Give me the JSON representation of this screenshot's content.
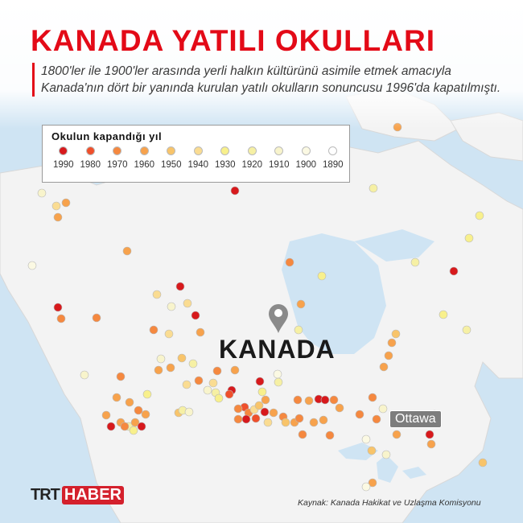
{
  "header": {
    "title": "KANADA YATILI OKULLARI",
    "subtitle": "1800'ler ile 1900'ler arasında yerli halkın kültürünü asimile etmek amacıyla Kanada'nın dört bir yanında kurulan yatılı okulların sonuncusu 1996'da kapatılmıştı."
  },
  "legend": {
    "title": "Okulun kapandığı yıl",
    "items": [
      {
        "label": "1990",
        "color": "#d7191c"
      },
      {
        "label": "1980",
        "color": "#ef4f2b"
      },
      {
        "label": "1970",
        "color": "#f5883f"
      },
      {
        "label": "1960",
        "color": "#f7a24c"
      },
      {
        "label": "1950",
        "color": "#f8c46a"
      },
      {
        "label": "1940",
        "color": "#fadc92"
      },
      {
        "label": "1930",
        "color": "#f8f08c"
      },
      {
        "label": "1920",
        "color": "#f6f0a4"
      },
      {
        "label": "1910",
        "color": "#f8f4cc"
      },
      {
        "label": "1900",
        "color": "#fbf9e3"
      },
      {
        "label": "1890",
        "color": "#ffffff"
      }
    ]
  },
  "map": {
    "country_label": "KANADA",
    "city_label": "Ottawa",
    "pin_icon": "map-pin-icon",
    "water_color": "#cfe4f3",
    "land_color": "#f3f3f3"
  },
  "footer": {
    "logo_trt": "TRT",
    "logo_haber": "HABER",
    "source": "Kaynak: Kanada Hakikat ve Uzlaşma Komisyonu"
  }
}
